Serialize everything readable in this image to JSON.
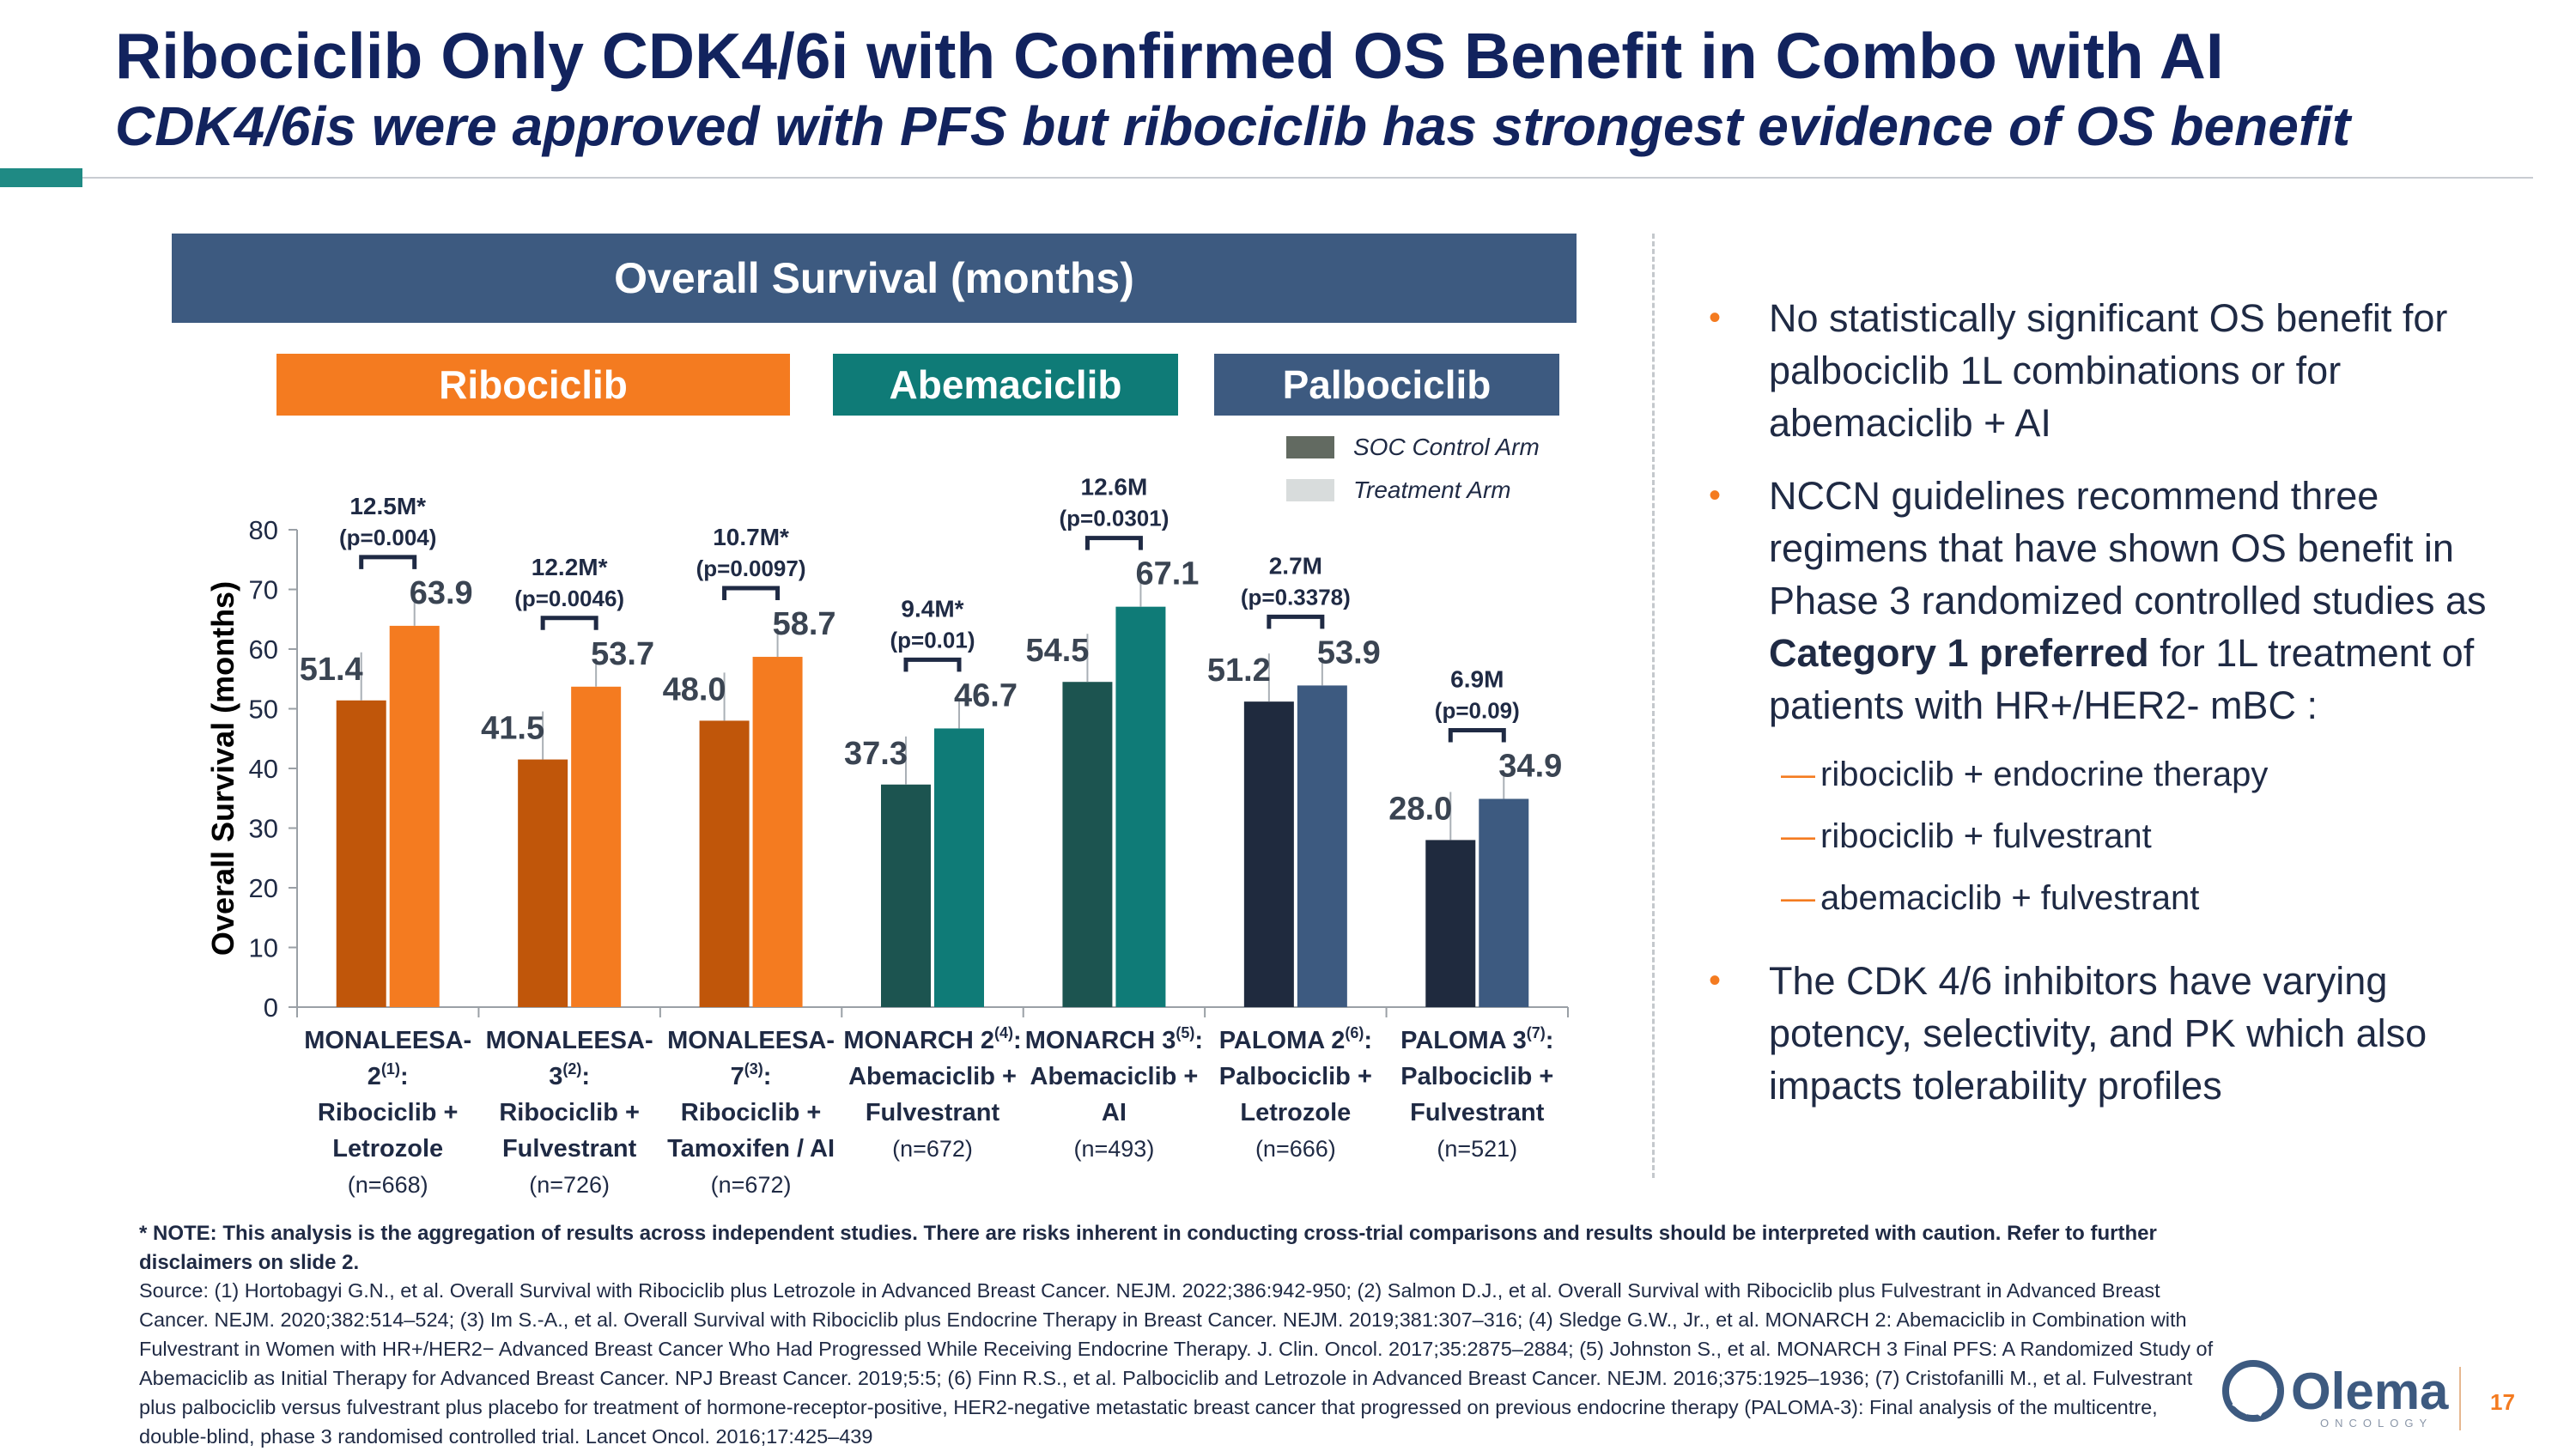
{
  "title": "Ribociclib Only CDK4/6i with Confirmed OS Benefit in Combo with AI",
  "subtitle": "CDK4/6is were approved with PFS but ribociclib has strongest evidence of OS benefit",
  "os_banner": "Overall Survival (months)",
  "drug_banners": {
    "ribociclib": "Ribociclib",
    "abemaciclib": "Abemaciclib",
    "palbociclib": "Palbociclib"
  },
  "colors": {
    "rib_soc": "#c0560a",
    "rib_trt": "#f47b20",
    "abe_soc": "#1c5450",
    "abe_trt": "#0f7b77",
    "pal_soc": "#1f2a3e",
    "pal_trt": "#3d5a80",
    "legend_soc": "#626a61",
    "legend_trt": "#d8dcdc"
  },
  "chart_data": {
    "type": "bar",
    "ylabel": "Overall Survival (months)",
    "ylim": [
      0,
      80
    ],
    "yticks": [
      "0",
      "10",
      "20",
      "30",
      "40",
      "50",
      "60",
      "70",
      "80"
    ],
    "legend": [
      {
        "name": "SOC Control Arm"
      },
      {
        "name": "Treatment Arm"
      }
    ],
    "studies": [
      {
        "lines": [
          "MONALEESA-",
          "2",
          "(1)",
          ":",
          "Ribociclib +",
          "Letrozole"
        ],
        "n": "(n=668)",
        "soc": 51.4,
        "trt": 63.9,
        "soc_label": "51.4",
        "trt_label": "63.9",
        "delta": "12.5M*",
        "p": "(p=0.004)",
        "group": "rib"
      },
      {
        "lines": [
          "MONALEESA-",
          "3",
          "(2)",
          ":",
          "Ribociclib +",
          "Fulvestrant"
        ],
        "n": "(n=726)",
        "soc": 41.5,
        "trt": 53.7,
        "soc_label": "41.5",
        "trt_label": "53.7",
        "delta": "12.2M*",
        "p": "(p=0.0046)",
        "group": "rib"
      },
      {
        "lines": [
          "MONALEESA-",
          "7",
          "(3)",
          ":",
          "Ribociclib +",
          "Tamoxifen / AI"
        ],
        "n": "(n=672)",
        "soc": 48.0,
        "trt": 58.7,
        "soc_label": "48.0",
        "trt_label": "58.7",
        "delta": "10.7M*",
        "p": "(p=0.0097)",
        "group": "rib"
      },
      {
        "lines": [
          "MONARCH 2",
          "(4)",
          ":",
          "Abemaciclib +",
          "Fulvestrant"
        ],
        "n": "(n=672)",
        "soc": 37.3,
        "trt": 46.7,
        "soc_label": "37.3",
        "trt_label": "46.7",
        "delta": "9.4M*",
        "p": "(p=0.01)",
        "group": "abe"
      },
      {
        "lines": [
          "MONARCH 3",
          "(5)",
          ":",
          "Abemaciclib +",
          "AI"
        ],
        "n": "(n=493)",
        "soc": 54.5,
        "trt": 67.1,
        "soc_label": "54.5",
        "trt_label": "67.1",
        "delta": "12.6M",
        "p": "(p=0.0301)",
        "group": "abe"
      },
      {
        "lines": [
          "PALOMA 2",
          "(6)",
          ":",
          "Palbociclib +",
          "Letrozole"
        ],
        "n": "(n=666)",
        "soc": 51.2,
        "trt": 53.9,
        "soc_label": "51.2",
        "trt_label": "53.9",
        "delta": "2.7M",
        "p": "(p=0.3378)",
        "group": "pal"
      },
      {
        "lines": [
          "PALOMA 3",
          "(7)",
          ":",
          "Palbociclib +",
          "Fulvestrant"
        ],
        "n": "(n=521)",
        "soc": 28.0,
        "trt": 34.9,
        "soc_label": "28.0",
        "trt_label": "34.9",
        "delta": "6.9M",
        "p": "(p=0.09)",
        "group": "pal"
      }
    ]
  },
  "bullets": {
    "b1": "No statistically significant OS benefit for palbociclib 1L combinations or for abemaciclib + AI",
    "b2_pre": "NCCN guidelines recommend three regimens that have shown OS benefit in Phase 3 randomized controlled studies as ",
    "b2_bold": "Category 1 preferred",
    "b2_post": " for 1L treatment of patients with HR+/HER2- mBC :",
    "sub": [
      "ribociclib + endocrine therapy",
      "ribociclib + fulvestrant",
      "abemaciclib + fulvestrant"
    ],
    "b3": "The CDK 4/6 inhibitors have varying potency, selectivity, and PK which also impacts tolerability profiles",
    "dot": "•",
    "dash": "—"
  },
  "note": "* NOTE: This analysis is the aggregation of results across independent studies.  There are risks inherent in conducting cross-trial comparisons and results should be interpreted with caution. Refer to further disclaimers on slide 2.",
  "source": "Source: (1) Hortobagyi G.N., et al. Overall Survival with Ribociclib plus Letrozole in Advanced Breast Cancer. NEJM. 2022;386:942-950; (2) Salmon D.J., et al. Overall Survival with Ribociclib plus Fulvestrant in Advanced Breast Cancer. NEJM. 2020;382:514–524; (3) Im S.-A., et al. Overall Survival with Ribociclib plus Endocrine Therapy in Breast Cancer. NEJM. 2019;381:307–316; (4) Sledge G.W., Jr., et al. MONARCH 2: Abemaciclib in Combination with Fulvestrant in Women with HR+/HER2− Advanced Breast Cancer Who Had Progressed While Receiving Endocrine Therapy. J. Clin. Oncol. 2017;35:2875–2884; (5) Johnston S., et al. MONARCH 3 Final PFS: A Randomized Study of Abemaciclib as Initial Therapy for Advanced Breast Cancer. NPJ Breast Cancer. 2019;5:5; (6) Finn R.S., et al. Palbociclib and Letrozole in Advanced Breast Cancer. NEJM. 2016;375:1925–1936; (7) Cristofanilli M., et al. Fulvestrant plus palbociclib versus fulvestrant plus placebo for treatment of hormone-receptor-positive, HER2-negative metastatic breast cancer that progressed on previous endocrine therapy (PALOMA-3): Final analysis of the multicentre, double-blind, phase 3 randomised controlled trial. Lancet Oncol. 2016;17:425–439",
  "logo": {
    "name": "Olema",
    "sub": "ONCOLOGY"
  },
  "page_number": "17"
}
